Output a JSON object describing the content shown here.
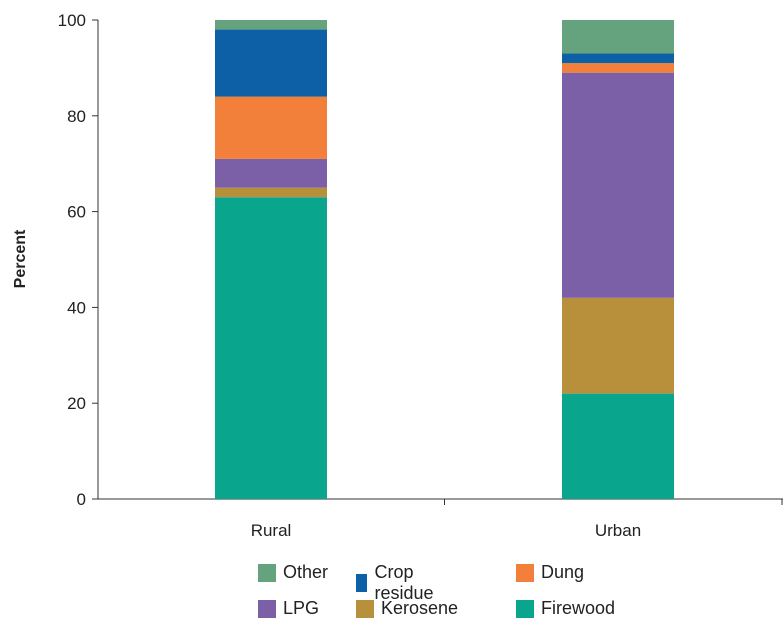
{
  "chart_data": {
    "type": "bar",
    "stacked": true,
    "categories": [
      "Rural",
      "Urban"
    ],
    "series": [
      {
        "name": "Firewood",
        "color": "#0aa58d",
        "values": [
          63,
          22
        ]
      },
      {
        "name": "Kerosene",
        "color": "#b8903c",
        "values": [
          2,
          20
        ]
      },
      {
        "name": "LPG",
        "color": "#7b60a8",
        "values": [
          6,
          47
        ]
      },
      {
        "name": "Dung",
        "color": "#f2803a",
        "values": [
          13,
          2
        ]
      },
      {
        "name": "Crop residue",
        "color": "#0d5fa6",
        "values": [
          14,
          2
        ]
      },
      {
        "name": "Other",
        "color": "#64a37d",
        "values": [
          2,
          7
        ]
      }
    ],
    "ylabel": "Percent",
    "xlabel": "",
    "ylim": [
      0,
      100
    ],
    "yticks": [
      0,
      20,
      40,
      60,
      80,
      100
    ],
    "legend_position": "bottom",
    "legend_rows": [
      [
        "Other",
        "Crop residue",
        "Dung"
      ],
      [
        "LPG",
        "Kerosene",
        "Firewood"
      ]
    ]
  }
}
